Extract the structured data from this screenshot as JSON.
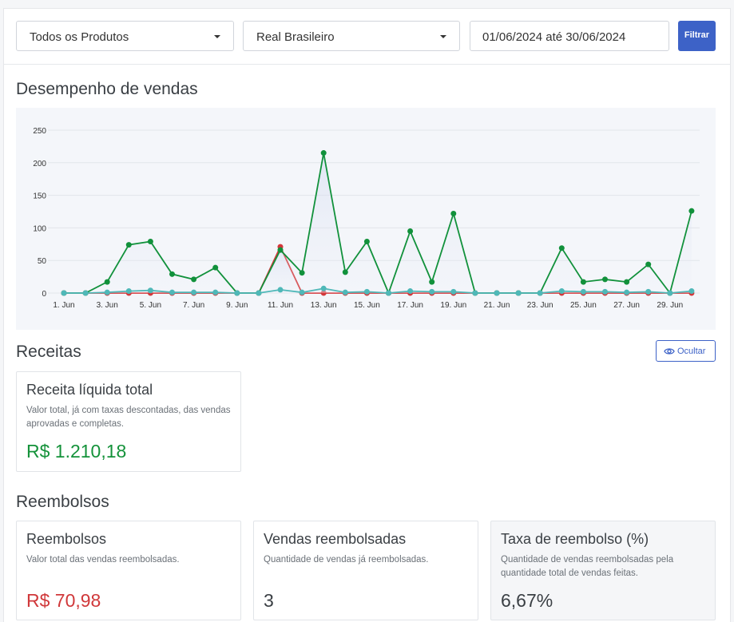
{
  "filters": {
    "product": "Todos os Produtos",
    "currency": "Real Brasileiro",
    "date_range": "01/06/2024 até 30/06/2024",
    "filter_button": "Filtrar"
  },
  "sales": {
    "title": "Desempenho de vendas"
  },
  "chart_data": {
    "type": "line",
    "x": [
      "1. Jun",
      "2. Jun",
      "3. Jun",
      "4. Jun",
      "5. Jun",
      "6. Jun",
      "7. Jun",
      "8. Jun",
      "9. Jun",
      "10. Jun",
      "11. Jun",
      "12. Jun",
      "13. Jun",
      "14. Jun",
      "15. Jun",
      "16. Jun",
      "17. Jun",
      "18. Jun",
      "19. Jun",
      "20. Jun",
      "21. Jun",
      "22. Jun",
      "23. Jun",
      "24. Jun",
      "25. Jun",
      "26. Jun",
      "27. Jun",
      "28. Jun",
      "29. Jun",
      "30. Jun"
    ],
    "x_tick_labels": [
      "1. Jun",
      "3. Jun",
      "5. Jun",
      "7. Jun",
      "9. Jun",
      "11. Jun",
      "13. Jun",
      "15. Jun",
      "17. Jun",
      "19. Jun",
      "21. Jun",
      "23. Jun",
      "25. Jun",
      "27. Jun",
      "29. Jun"
    ],
    "y_ticks": [
      0,
      50,
      100,
      150,
      200,
      250
    ],
    "ylim": [
      0,
      250
    ],
    "grid": true,
    "series": [
      {
        "color": "#d3373a",
        "values": [
          0,
          0,
          0,
          0,
          0,
          0,
          0,
          0,
          0,
          0,
          71,
          0,
          0,
          0,
          0,
          0,
          0,
          0,
          0,
          0,
          0,
          0,
          0,
          0,
          0,
          0,
          0,
          0,
          0,
          0
        ]
      },
      {
        "color": "#11913b",
        "values": [
          0,
          0,
          17,
          74,
          79,
          29,
          21,
          39,
          0,
          0,
          66,
          31,
          215,
          32,
          79,
          0,
          95,
          17,
          122,
          0,
          0,
          0,
          0,
          69,
          17,
          21,
          17,
          44,
          0,
          126
        ]
      },
      {
        "color": "#4fb8b8",
        "values": [
          0,
          0,
          1,
          3,
          4,
          1,
          1,
          1,
          0,
          0,
          5,
          1,
          7,
          1,
          2,
          0,
          3,
          2,
          2,
          0,
          0,
          0,
          0,
          3,
          2,
          2,
          1,
          2,
          0,
          3
        ]
      }
    ]
  },
  "revenue": {
    "title": "Receitas",
    "hide_button": "Ocultar",
    "net_title": "Receita líquida total",
    "net_desc": "Valor total, já com taxas descontadas, das vendas aprovadas e completas.",
    "net_value": "R$ 1.210,18"
  },
  "refunds": {
    "title": "Reembolsos",
    "cards": [
      {
        "title": "Reembolsos",
        "desc": "Valor total das vendas reembolsadas.",
        "value": "R$ 70,98"
      },
      {
        "title": "Vendas reembolsadas",
        "desc": "Quantidade de vendas já reembolsadas.",
        "value": "3"
      },
      {
        "title": "Taxa de reembolso (%)",
        "desc": "Quantidade de vendas reembolsadas pela quantidade total de vendas feitas.",
        "value": "6,67%"
      }
    ]
  }
}
